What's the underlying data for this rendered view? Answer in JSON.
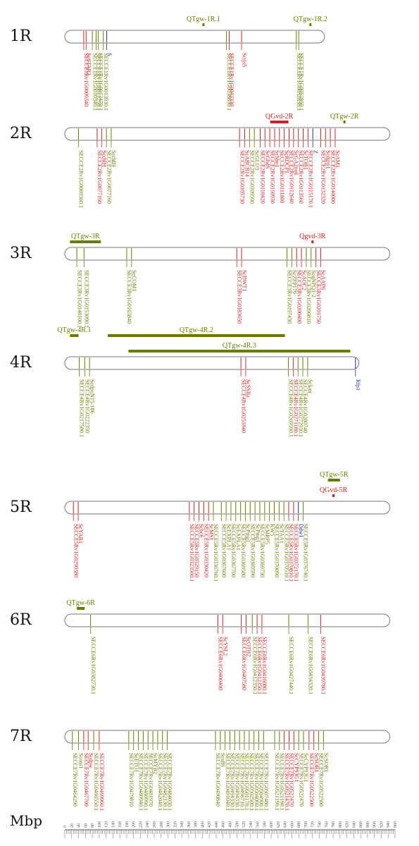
{
  "colors": {
    "olive": "#6b7a00",
    "red": "#d11f1f",
    "blue": "#1f2aa8",
    "gray": "#777777",
    "qtl_bar": "#6b7a00",
    "qtl_red_bar": "#d11f1f"
  },
  "axis": {
    "label": "Mbp",
    "ticks": [
      "0",
      "20",
      "40",
      "60",
      "80",
      "100",
      "120",
      "140",
      "160",
      "180",
      "200",
      "220",
      "240",
      "260",
      "280",
      "300",
      "320",
      "340",
      "360",
      "380",
      "400",
      "420",
      "440",
      "460",
      "480",
      "500",
      "520",
      "540",
      "560",
      "580",
      "600",
      "620",
      "640",
      "660",
      "680",
      "700",
      "720",
      "740",
      "760",
      "780",
      "800",
      "820",
      "840",
      "860",
      "880",
      "900",
      "920",
      "940",
      "960"
    ]
  },
  "chromosomes": [
    {
      "name": "1R",
      "length": 755,
      "qtls": [
        {
          "label": "QTgw-1R.1",
          "start": 400,
          "end": 405,
          "color": "olive",
          "level": 0
        },
        {
          "label": "QTgw-1R.2",
          "start": 711,
          "end": 713,
          "color": "olive",
          "level": 0
        }
      ],
      "genes": [
        {
          "label": "SECCE1Rv1G0009340",
          "pos": 55,
          "color": "red"
        },
        {
          "label": "ScSTAR2",
          "pos": 62,
          "color": "red"
        },
        {
          "label": "SECCE1Rv1G0010340.1",
          "pos": 80,
          "color": "olive"
        },
        {
          "label": "SECCE1Rv1G0012250.1",
          "pos": 91,
          "color": "olive"
        },
        {
          "label": "SECCE1Rv1G0012470.1",
          "pos": 97,
          "color": "olive"
        },
        {
          "label": "SECCE1Rv1G0013930.1",
          "pos": 112,
          "color": "olive"
        },
        {
          "label": "S",
          "pos": 122,
          "color": "blue"
        },
        {
          "label": "SECCE1Rv1G0038830.1",
          "pos": 470,
          "color": "olive"
        },
        {
          "label": "SECCE1Rv1G0042330",
          "pos": 478,
          "color": "red"
        },
        {
          "label": "Scrjs5",
          "pos": 514,
          "color": "red"
        },
        {
          "label": "SECCE1Rv1G0052830.1",
          "pos": 673,
          "color": "olive"
        },
        {
          "label": "SECCE1Rv1G0052850.1",
          "pos": 680,
          "color": "olive"
        }
      ]
    },
    {
      "name": "2R",
      "length": 945,
      "qtls": [
        {
          "label": "QGvd-2R",
          "start": 597,
          "end": 650,
          "color": "red",
          "level": 0
        },
        {
          "label": "QTgw-2R",
          "start": 810,
          "end": 815,
          "color": "olive",
          "level": 0
        }
      ],
      "genes": [
        {
          "label": "SECCE2Rv1G0069360.1",
          "pos": 40,
          "color": "olive"
        },
        {
          "label": "SECCE2Rv1G0077160",
          "pos": 94,
          "color": "red"
        },
        {
          "label": "ScchlH",
          "pos": 107,
          "color": "red"
        },
        {
          "label": "SECCE2Rv1G0077160",
          "pos": 121,
          "color": "olive"
        },
        {
          "label": "ScchlH",
          "pos": 135,
          "color": "olive"
        },
        {
          "label": "SECCE2Rv1G0105730",
          "pos": 508,
          "color": "red"
        },
        {
          "label": "ScABCB14",
          "pos": 523,
          "color": "red"
        },
        {
          "label": "SECCE2Rv1G0109590",
          "pos": 537,
          "color": "olive"
        },
        {
          "label": "ScGLU3",
          "pos": 551,
          "color": "olive"
        },
        {
          "label": "SECCE2Rv1G0110420",
          "pos": 568,
          "color": "red"
        },
        {
          "label": "ScGhdS",
          "pos": 582,
          "color": "red"
        },
        {
          "label": "SECCE2Rv1G0110930",
          "pos": 596,
          "color": "red"
        },
        {
          "label": "ScSho1",
          "pos": 610,
          "color": "red"
        },
        {
          "label": "SECCE2Rv1G0111800",
          "pos": 624,
          "color": "red"
        },
        {
          "label": "ScRDCP1",
          "pos": 638,
          "color": "red"
        },
        {
          "label": "SECCE2Rv1G0112640",
          "pos": 652,
          "color": "red"
        },
        {
          "label": "ScGA2ox6",
          "pos": 665,
          "color": "red"
        },
        {
          "label": "SECCE2Rv1G0113560",
          "pos": 679,
          "color": "red"
        },
        {
          "label": "ScTOB1",
          "pos": 693,
          "color": "red"
        },
        {
          "label": "SECCE2Rv1G0115170.1",
          "pos": 707,
          "color": "red"
        },
        {
          "label": "Z",
          "pos": 721,
          "color": "blue"
        },
        {
          "label": "SECCE2Rv1G0132320",
          "pos": 744,
          "color": "red"
        },
        {
          "label": "Scdgrp1",
          "pos": 758,
          "color": "red"
        },
        {
          "label": "SECCE2Rv1G0140000",
          "pos": 772,
          "color": "red"
        },
        {
          "label": "ScAM1",
          "pos": 786,
          "color": "red"
        }
      ]
    },
    {
      "name": "3R",
      "length": 945,
      "qtls": [
        {
          "label": "QTgw-3R",
          "start": 15,
          "end": 105,
          "color": "olive",
          "level": 0
        },
        {
          "label": "Qgvd-3R",
          "start": 717,
          "end": 722,
          "color": "red",
          "level": 0
        }
      ],
      "genes": [
        {
          "label": "SECCE3Rv1G0148100.1",
          "pos": 35,
          "color": "olive"
        },
        {
          "label": "SECCE3Rv1G0153090.1",
          "pos": 56,
          "color": "olive"
        },
        {
          "label": "SECCE3Rv1G0163840",
          "pos": 180,
          "color": "olive"
        },
        {
          "label": "ScCOM1",
          "pos": 194,
          "color": "olive"
        },
        {
          "label": "SECCE3Rv1G0183650",
          "pos": 500,
          "color": "red"
        },
        {
          "label": "ScDWT1",
          "pos": 514,
          "color": "red"
        },
        {
          "label": "SECCE3Rv1G0197430",
          "pos": 646,
          "color": "olive"
        },
        {
          "label": "ScZFP179",
          "pos": 660,
          "color": "olive"
        },
        {
          "label": "SECCE3Rv1G0200400",
          "pos": 674,
          "color": "red"
        },
        {
          "label": "ScAOC2",
          "pos": 688,
          "color": "red"
        },
        {
          "label": "SECCE3Rv1G0200810",
          "pos": 702,
          "color": "olive"
        },
        {
          "label": "ScqNPQ1-2",
          "pos": 716,
          "color": "olive"
        },
        {
          "label": "SECCE3Rv1G0201750",
          "pos": 730,
          "color": "red"
        },
        {
          "label": "ScAAP6",
          "pos": 744,
          "color": "red"
        }
      ]
    },
    {
      "name": "4R",
      "length": 855,
      "qtls": [
        {
          "label": "QTgw-4R.3",
          "start": 185,
          "end": 830,
          "color": "olive",
          "level": 0
        },
        {
          "label": "QTgw-4R.1",
          "start": 15,
          "end": 40,
          "color": "olive",
          "level": 1
        },
        {
          "label": "QTgw-4R.2",
          "start": 125,
          "end": 640,
          "color": "olive",
          "level": 1
        }
      ],
      "genes": [
        {
          "label": "SECCE4Rv1G0217580.1",
          "pos": 42,
          "color": "olive"
        },
        {
          "label": "SECCE4Rv1G0222350",
          "pos": 58,
          "color": "olive"
        },
        {
          "label": "ScdpuN15-186",
          "pos": 72,
          "color": "olive"
        },
        {
          "label": "SECCE4Rv1G0251840",
          "pos": 512,
          "color": "red"
        },
        {
          "label": "ScSSIIa",
          "pos": 526,
          "color": "red"
        },
        {
          "label": "SECCE4Rv1G0269590.1",
          "pos": 650,
          "color": "olive"
        },
        {
          "label": "SECCE4Rv1G0271180.1",
          "pos": 664,
          "color": "red"
        },
        {
          "label": "SECCE4Rv1G0272930.1",
          "pos": 678,
          "color": "olive"
        },
        {
          "label": "SECCE4Rv1G0280740",
          "pos": 692,
          "color": "olive"
        },
        {
          "label": "Sckan",
          "pos": 706,
          "color": "olive"
        },
        {
          "label": "Rfp1",
          "pos": 845,
          "color": "blue"
        }
      ]
    },
    {
      "name": "5R",
      "length": 945,
      "qtls": [
        {
          "label": "QGvd-5R",
          "start": 778,
          "end": 780,
          "color": "red",
          "level": 0
        },
        {
          "label": "QTgw-5R",
          "start": 765,
          "end": 800,
          "color": "olive",
          "level": 1
        }
      ],
      "genes": [
        {
          "label": "SECCE5Rv1G0290380",
          "pos": 25,
          "color": "red"
        },
        {
          "label": "ScYAB1",
          "pos": 39,
          "color": "red"
        },
        {
          "label": "SECCE5Rv1G0323560.1",
          "pos": 362,
          "color": "red"
        },
        {
          "label": "SECCE5Rv1G0329150",
          "pos": 376,
          "color": "red"
        },
        {
          "label": "Scbc6",
          "pos": 390,
          "color": "red"
        },
        {
          "label": "SECCE5Rv1G0330420",
          "pos": 404,
          "color": "red"
        },
        {
          "label": "ScMS1",
          "pos": 418,
          "color": "red"
        },
        {
          "label": "SECCE5Rv1G0336760.1",
          "pos": 432,
          "color": "olive"
        },
        {
          "label": "SECCE5Rv1G0367600",
          "pos": 455,
          "color": "olive"
        },
        {
          "label": "ScEXPLA1",
          "pos": 469,
          "color": "olive"
        },
        {
          "label": "SECCE5Rv1G0367700",
          "pos": 483,
          "color": "olive"
        },
        {
          "label": "ScEXPLA1",
          "pos": 497,
          "color": "olive"
        },
        {
          "label": "SECCE5Rv1G0369580",
          "pos": 511,
          "color": "olive"
        },
        {
          "label": "ScPmg1",
          "pos": 525,
          "color": "olive"
        },
        {
          "label": "SECCE5Rv1G0369590",
          "pos": 539,
          "color": "olive"
        },
        {
          "label": "ScPmg1",
          "pos": 553,
          "color": "olive"
        },
        {
          "label": "SECCE5Rv1G0369730",
          "pos": 567,
          "color": "olive"
        },
        {
          "label": "ScMRP5",
          "pos": 581,
          "color": "olive"
        },
        {
          "label": "KW5",
          "pos": 595,
          "color": "olive"
        },
        {
          "label": "SECCE5Rv1G0370090",
          "pos": 609,
          "color": "olive"
        },
        {
          "label": "ScTAA1",
          "pos": 623,
          "color": "olive"
        },
        {
          "label": "SECCE5Rv1G0370510.1",
          "pos": 637,
          "color": "olive"
        },
        {
          "label": "SECCE5Rv1G0370810.1",
          "pos": 651,
          "color": "red"
        },
        {
          "label": "SECCE5Rv1G0372170.1",
          "pos": 665,
          "color": "red"
        },
        {
          "label": "Ddw1",
          "pos": 679,
          "color": "blue"
        },
        {
          "label": "SECCE5Rv1G0376740.1",
          "pos": 693,
          "color": "olive"
        }
      ]
    },
    {
      "name": "6R",
      "length": 945,
      "qtls": [
        {
          "label": "QTgw-6R",
          "start": 35,
          "end": 58,
          "color": "olive",
          "level": 0
        }
      ],
      "genes": [
        {
          "label": "SECCE6Rv1G0382730.1",
          "pos": 75,
          "color": "olive"
        },
        {
          "label": "SECCE6Rv1G0400400",
          "pos": 445,
          "color": "red"
        },
        {
          "label": "ScYSL2",
          "pos": 459,
          "color": "red"
        },
        {
          "label": "SECCE6Rv1G0407580",
          "pos": 513,
          "color": "red"
        },
        {
          "label": "ScOTH2",
          "pos": 527,
          "color": "red"
        },
        {
          "label": "SECCE6Rv1G0412350.1",
          "pos": 545,
          "color": "olive"
        },
        {
          "label": "SECCE6Rv1G0412350.1",
          "pos": 559,
          "color": "red"
        },
        {
          "label": "SECCE6Rv1G0416080.1",
          "pos": 573,
          "color": "red"
        },
        {
          "label": "SECCE6Rv1G0427440.1",
          "pos": 651,
          "color": "olive"
        },
        {
          "label": "SECCE6Rv1G0434320.1",
          "pos": 707,
          "color": "olive"
        },
        {
          "label": "SECCE6Rv1G0439780.1",
          "pos": 744,
          "color": "red"
        }
      ]
    },
    {
      "name": "7R",
      "length": 945,
      "qtls": [],
      "genes": [
        {
          "label": "SECCE7Rv1G0464290",
          "pos": 22,
          "color": "olive"
        },
        {
          "label": "Sconi1",
          "pos": 40,
          "color": "olive"
        },
        {
          "label": "SECCE7Rv1G0467700",
          "pos": 55,
          "color": "red"
        },
        {
          "label": "Scdpw",
          "pos": 68,
          "color": "red"
        },
        {
          "label": "SECCE7Rv1G0466550.1",
          "pos": 84,
          "color": "olive"
        },
        {
          "label": "SECCE7Rv1G0469060.1",
          "pos": 100,
          "color": "red"
        },
        {
          "label": "SECCE7Rv1G0479810",
          "pos": 186,
          "color": "olive"
        },
        {
          "label": "ScETO1",
          "pos": 200,
          "color": "olive"
        },
        {
          "label": "SECCE7Rv1G0480940.1",
          "pos": 214,
          "color": "olive"
        },
        {
          "label": "SECCE7Rv1G0480990.1",
          "pos": 228,
          "color": "olive"
        },
        {
          "label": "SECCE7Rv1G0481970",
          "pos": 242,
          "color": "olive"
        },
        {
          "label": "ScMYB2",
          "pos": 256,
          "color": "olive"
        },
        {
          "label": "SECCE7Rv1G0482040.1",
          "pos": 270,
          "color": "olive"
        },
        {
          "label": "SECCE7Rv1G0482130.1",
          "pos": 284,
          "color": "olive"
        },
        {
          "label": "SECCE7Rv1G0484030.1",
          "pos": 298,
          "color": "olive"
        },
        {
          "label": "SECCE7Rv1G0490840",
          "pos": 438,
          "color": "olive"
        },
        {
          "label": "Scsfl6",
          "pos": 452,
          "color": "olive"
        },
        {
          "label": "SECCE7Rv1G0491040.1",
          "pos": 466,
          "color": "olive"
        },
        {
          "label": "SECCE7Rv1G0494330.1",
          "pos": 480,
          "color": "olive"
        },
        {
          "label": "SECCE7Rv1G0494330.1",
          "pos": 494,
          "color": "olive"
        },
        {
          "label": "SECCE7Rv1G0496710.1",
          "pos": 508,
          "color": "olive"
        },
        {
          "label": "SECCE7Rv1G0501170.1",
          "pos": 522,
          "color": "olive"
        },
        {
          "label": "SECCE7Rv1G0502500.1",
          "pos": 536,
          "color": "olive"
        },
        {
          "label": "SECCE7Rv1G0504060.1",
          "pos": 550,
          "color": "olive"
        },
        {
          "label": "SECCE7Rv1G0504900.1",
          "pos": 564,
          "color": "olive"
        },
        {
          "label": "SECCE7Rv1G0507480.1",
          "pos": 578,
          "color": "olive"
        },
        {
          "label": "SECCE7Rv1G0521190.1",
          "pos": 610,
          "color": "olive"
        },
        {
          "label": "SECCE7Rv1G0521190.1",
          "pos": 624,
          "color": "olive"
        },
        {
          "label": "SECCE7Rv1G0521470.1",
          "pos": 638,
          "color": "red"
        },
        {
          "label": "SECCE7Rv1G0522470",
          "pos": 652,
          "color": "red"
        },
        {
          "label": "ScCYP93G1",
          "pos": 666,
          "color": "red"
        },
        {
          "label": "SECCE7Rv1G0522470",
          "pos": 680,
          "color": "olive"
        },
        {
          "label": "ScCYP93G1",
          "pos": 694,
          "color": "olive"
        },
        {
          "label": "SECCE7Rv1G0522500",
          "pos": 710,
          "color": "red"
        },
        {
          "label": "ScSOR1",
          "pos": 724,
          "color": "red"
        },
        {
          "label": "SECCE7Rv1G0522500",
          "pos": 738,
          "color": "olive"
        },
        {
          "label": "ScSOR1",
          "pos": 752,
          "color": "olive"
        }
      ]
    }
  ]
}
